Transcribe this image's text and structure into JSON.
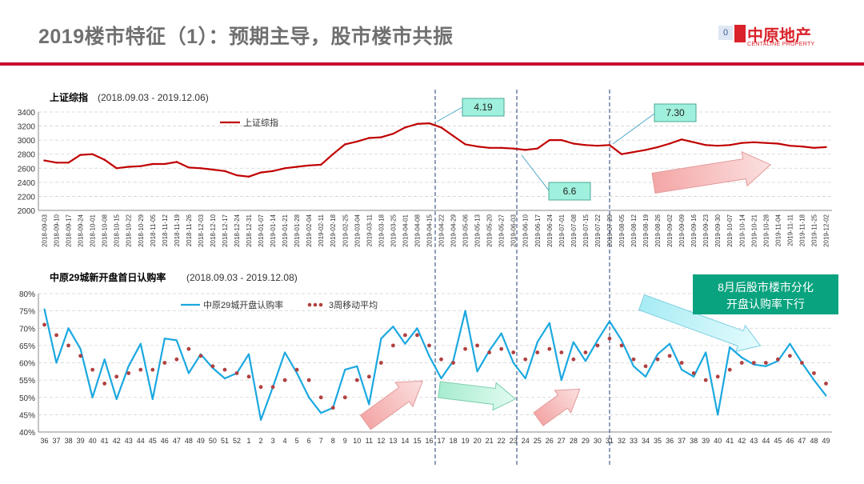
{
  "page": {
    "title": "2019楼市特征（1）：预期主导，股市楼市共振",
    "logo_box": "0",
    "logo_cn": "中原地产",
    "logo_en": "CENTALINE PROPERTY"
  },
  "colors": {
    "accent": "#c8102e",
    "series_red": "#c00000",
    "series_blue": "#1ba8e0",
    "note_fill": "#9ff0dc",
    "note_green": "#0aa37f"
  },
  "chart_data": [
    {
      "type": "line",
      "title": "上证综指",
      "subtitle": "(2018.09.03 - 2019.12.06)",
      "ylim": [
        2000,
        3400
      ],
      "yticks": [
        2000,
        2200,
        2400,
        2600,
        2800,
        3000,
        3200,
        3400
      ],
      "legend": "top-left",
      "x_labels": [
        "2018-09-03",
        "2018-09-10",
        "2018-09-17",
        "2018-09-24",
        "2018-10-01",
        "2018-10-08",
        "2018-10-15",
        "2018-10-22",
        "2018-10-29",
        "2018-11-05",
        "2018-11-12",
        "2018-11-19",
        "2018-11-26",
        "2018-12-03",
        "2018-12-10",
        "2018-12-17",
        "2018-12-24",
        "2018-12-31",
        "2019-01-07",
        "2019-01-14",
        "2019-01-21",
        "2019-01-28",
        "2019-02-04",
        "2019-02-11",
        "2019-02-18",
        "2019-02-25",
        "2019-03-04",
        "2019-03-11",
        "2019-03-18",
        "2019-03-25",
        "2019-04-01",
        "2019-04-08",
        "2019-04-15",
        "2019-04-22",
        "2019-04-29",
        "2019-05-06",
        "2019-05-13",
        "2019-05-20",
        "2019-05-27",
        "2019-06-03",
        "2019-06-10",
        "2019-06-17",
        "2019-06-24",
        "2019-07-01",
        "2019-07-08",
        "2019-07-15",
        "2019-07-22",
        "2019-07-29",
        "2019-08-05",
        "2019-08-12",
        "2019-08-19",
        "2019-08-26",
        "2019-09-02",
        "2019-09-09",
        "2019-09-16",
        "2019-09-23",
        "2019-09-30",
        "2019-10-07",
        "2019-10-14",
        "2019-10-21",
        "2019-10-28",
        "2019-11-04",
        "2019-11-11",
        "2019-11-18",
        "2019-11-25",
        "2019-12-02"
      ],
      "series": [
        {
          "name": "上证综指",
          "values": [
            2710,
            2680,
            2680,
            2790,
            2800,
            2720,
            2600,
            2620,
            2630,
            2660,
            2660,
            2690,
            2610,
            2600,
            2580,
            2560,
            2500,
            2480,
            2540,
            2560,
            2600,
            2620,
            2640,
            2650,
            2800,
            2940,
            2980,
            3030,
            3040,
            3090,
            3180,
            3230,
            3240,
            3180,
            3060,
            2940,
            2910,
            2890,
            2890,
            2880,
            2860,
            2880,
            3000,
            3000,
            2950,
            2930,
            2920,
            2930,
            2800,
            2830,
            2860,
            2900,
            2950,
            3010,
            2970,
            2930,
            2920,
            2930,
            2960,
            2970,
            2960,
            2950,
            2920,
            2910,
            2890,
            2900
          ]
        }
      ],
      "annotations": [
        "4.19",
        "6.6",
        "7.30"
      ]
    },
    {
      "type": "line",
      "title": "中原29城新开盘首日认购率",
      "subtitle": "(2018.09.03 - 2019.12.08)",
      "ylim": [
        40,
        80
      ],
      "yticks": [
        "40%",
        "45%",
        "50%",
        "55%",
        "60%",
        "65%",
        "70%",
        "75%",
        "80%"
      ],
      "legend": "top-left",
      "x_labels": [
        "36",
        "37",
        "38",
        "39",
        "40",
        "41",
        "42",
        "43",
        "44",
        "45",
        "46",
        "47",
        "48",
        "49",
        "50",
        "51",
        "52",
        "1",
        "2",
        "3",
        "4",
        "5",
        "6",
        "7",
        "8",
        "9",
        "10",
        "11",
        "12",
        "13",
        "14",
        "15",
        "16",
        "17",
        "18",
        "19",
        "20",
        "21",
        "22",
        "23",
        "24",
        "25",
        "26",
        "27",
        "28",
        "29",
        "30",
        "31",
        "32",
        "33",
        "34",
        "35",
        "36",
        "37",
        "38",
        "39",
        "40",
        "41",
        "42",
        "43",
        "44",
        "45",
        "46",
        "47",
        "48",
        "49"
      ],
      "series": [
        {
          "name": "中原29城开盘认购率",
          "values": [
            75.5,
            60,
            70,
            64,
            50,
            61,
            49.5,
            59,
            65.5,
            49.5,
            67,
            66.5,
            57,
            62.5,
            58.5,
            55.5,
            57,
            62.5,
            43.5,
            53,
            63,
            57,
            50,
            45.5,
            47,
            58,
            59,
            48,
            67,
            70.5,
            65.5,
            70,
            62,
            55.5,
            60.5,
            75,
            57.5,
            63.5,
            68.5,
            60,
            55.5,
            66,
            71.5,
            55,
            66,
            60.5,
            66.5,
            72,
            66.5,
            59,
            56,
            62.5,
            65.5,
            58,
            56,
            63,
            45,
            64.5,
            61.5,
            59.5,
            59,
            60.5,
            65.5,
            60,
            55,
            50.5
          ]
        },
        {
          "name": "3周移动平均",
          "values": [
            71,
            68,
            65,
            62,
            58,
            54,
            56,
            57,
            58,
            58,
            60,
            61,
            64,
            62,
            59,
            58,
            57,
            56,
            53,
            53,
            55,
            58,
            55,
            50,
            47,
            50,
            55,
            56,
            60,
            65,
            68,
            68,
            65,
            61,
            60,
            64,
            65,
            63,
            64,
            63,
            61,
            63,
            64,
            63,
            61,
            63,
            65,
            67,
            65,
            61,
            59,
            61,
            62,
            60,
            57,
            55,
            56,
            58,
            60,
            60,
            60,
            61,
            62,
            60,
            57,
            54
          ]
        }
      ],
      "annotation_box": [
        "8月后股市楼市分化",
        "开盘认购率下行"
      ]
    }
  ]
}
